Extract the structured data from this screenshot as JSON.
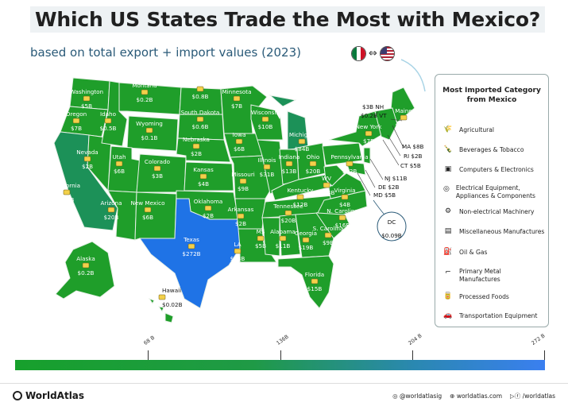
{
  "title": "Which US States Trade the Most with Mexico?",
  "subtitle": "based on total export + import values (2023)",
  "colors": {
    "low": "#17a02c",
    "high": "#3a7ff0",
    "state_green": "#1f9e2a",
    "texas_blue": "#1f73e6",
    "border": "#e8f0e8"
  },
  "states": [
    {
      "name": "Washington",
      "value": "$5B"
    },
    {
      "name": "Oregon",
      "value": "$7B"
    },
    {
      "name": "Idaho",
      "value": "$0.5B"
    },
    {
      "name": "Montana",
      "value": "$0.2B"
    },
    {
      "name": "North Dakota",
      "value": "$0.8B"
    },
    {
      "name": "South Dakota",
      "value": "$0.6B"
    },
    {
      "name": "Wyoming",
      "value": "$0.1B"
    },
    {
      "name": "Minnesota",
      "value": "$7B"
    },
    {
      "name": "Wisconsin",
      "value": "$10B"
    },
    {
      "name": "Michigan",
      "value": "$84B"
    },
    {
      "name": "Iowa",
      "value": "$6B"
    },
    {
      "name": "Nebraska",
      "value": "$2B"
    },
    {
      "name": "Nevada",
      "value": "$2B"
    },
    {
      "name": "Utah",
      "value": "$6B"
    },
    {
      "name": "Colorado",
      "value": "$3B"
    },
    {
      "name": "Kansas",
      "value": "$4B"
    },
    {
      "name": "California",
      "value": "$95B"
    },
    {
      "name": "Arizona",
      "value": "$20B"
    },
    {
      "name": "New Mexico",
      "value": "$6B"
    },
    {
      "name": "Oklahoma",
      "value": "$2B"
    },
    {
      "name": "Missouri",
      "value": "$9B"
    },
    {
      "name": "Illinois",
      "value": "$31B"
    },
    {
      "name": "Indiana",
      "value": "$13B"
    },
    {
      "name": "Ohio",
      "value": "$20B"
    },
    {
      "name": "Kentucky",
      "value": "$12B"
    },
    {
      "name": "Arkansas",
      "value": "$2B"
    },
    {
      "name": "Tennessee",
      "value": "$20B"
    },
    {
      "name": "Texas",
      "value": "$272B"
    },
    {
      "name": "LA",
      "value": "$13B"
    },
    {
      "name": "MS",
      "value": "$5B"
    },
    {
      "name": "Alabama",
      "value": "$11B"
    },
    {
      "name": "Georgia",
      "value": "$19B"
    },
    {
      "name": "Florida",
      "value": "$15B"
    },
    {
      "name": "S. Carolina",
      "value": "$9B"
    },
    {
      "name": "N. Carolina",
      "value": "$16B"
    },
    {
      "name": "Virginia",
      "value": "$4B"
    },
    {
      "name": "WV",
      "value": "$0.4B"
    },
    {
      "name": "Pennsylvania",
      "value": "$12B"
    },
    {
      "name": "New York",
      "value": "$7B"
    },
    {
      "name": "Maine",
      "value": "$0.2B"
    },
    {
      "name": "Alaska",
      "value": "$0.2B"
    },
    {
      "name": "Hawaii",
      "value": "$0.02B"
    }
  ],
  "ne_callouts": [
    {
      "label": "$3B",
      "name": "NH"
    },
    {
      "label": "$0.2B",
      "name": "VT"
    },
    {
      "label": "MA",
      "value": "$8B"
    },
    {
      "label": "RI",
      "value": "$2B"
    },
    {
      "label": "CT",
      "value": "$5B"
    },
    {
      "label": "NJ",
      "value": "$11B"
    },
    {
      "label": "DE",
      "value": "$2B"
    },
    {
      "label": "MD",
      "value": "$5B"
    }
  ],
  "dc": {
    "name": "DC",
    "value": "$0.09B"
  },
  "legend": {
    "title": "Most Imported Category from Mexico",
    "items": [
      {
        "label": "Agricultural",
        "icon": "wheat-icon"
      },
      {
        "label": "Beverages & Tobacco",
        "icon": "bottle-icon"
      },
      {
        "label": "Computers & Electronics",
        "icon": "chip-icon"
      },
      {
        "label": "Electrical Equipment, Appliances & Components",
        "icon": "plug-icon"
      },
      {
        "label": "Non-electrical Machinery",
        "icon": "gear-icon"
      },
      {
        "label": "Miscellaneous Manufactures",
        "icon": "box-icon"
      },
      {
        "label": "Oil & Gas",
        "icon": "oil-icon"
      },
      {
        "label": "Primary Metal Manufactures",
        "icon": "metal-icon"
      },
      {
        "label": "Processed Foods",
        "icon": "can-icon"
      },
      {
        "label": "Transportation Equipment",
        "icon": "car-icon"
      }
    ]
  },
  "scale": {
    "ticks": [
      "68 B",
      "136B",
      "204 B",
      "272 B"
    ]
  },
  "footer": {
    "brand": "WorldAtlas",
    "instagram": "@worldatlasig",
    "site": "worldatlas.com",
    "handle": "/worldatlas"
  }
}
